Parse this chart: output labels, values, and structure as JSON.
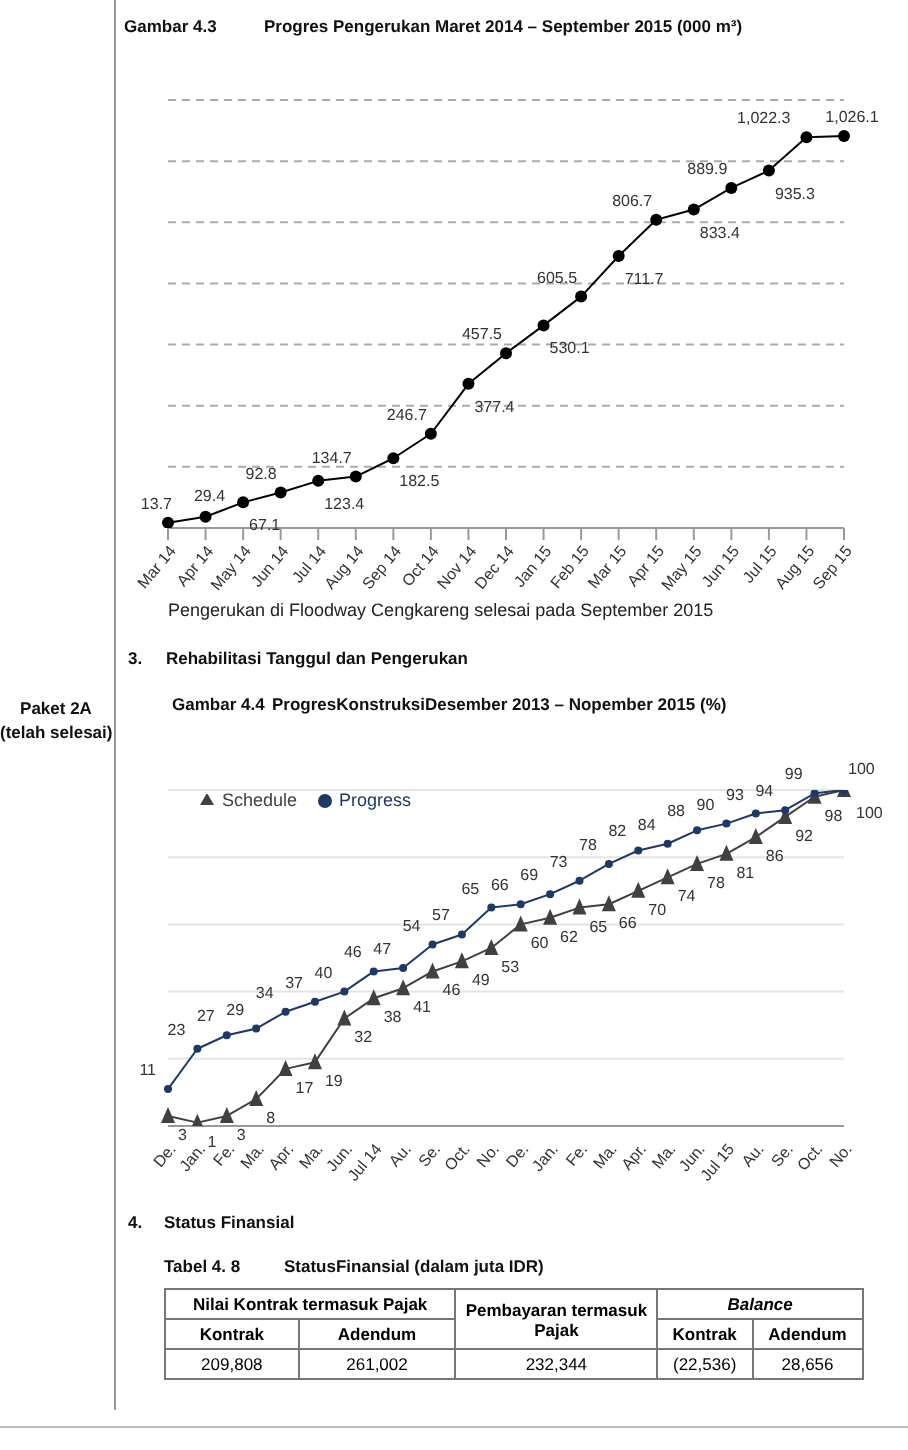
{
  "chart_data": [
    {
      "type": "line",
      "title": "Progres Pengerukan Maret 2014 – September 2015 (000 m³)",
      "annotations": [
        "Gambar 4.3",
        "Pengerukan di Floodway Cengkareng selesai pada September 2015"
      ],
      "categories": [
        "Mar 14",
        "Apr 14",
        "May 14",
        "Jun 14",
        "Jul 14",
        "Aug 14",
        "Sep 14",
        "Oct 14",
        "Nov 14",
        "Dec 14",
        "Jan 15",
        "Feb 15",
        "Mar 15",
        "Apr 15",
        "May 15",
        "Jun 15",
        "Jul 15",
        "Aug 15",
        "Sep 15"
      ],
      "series": [
        {
          "color": "#000000",
          "values": [
            13.7,
            29.4,
            67.1,
            92.8,
            123.4,
            134.7,
            182.5,
            246.7,
            377.4,
            457.5,
            530.1,
            605.5,
            711.7,
            806.7,
            833.4,
            889.9,
            935.3,
            1022.3,
            1026.1
          ],
          "value_labels": [
            "13.7",
            "29.4",
            "67.1",
            "92.8",
            "123.4",
            "134.7",
            "182.5",
            "246.7",
            "377.4",
            "457.5",
            "530.1",
            "605.5",
            "711.7",
            "806.7",
            "833.4",
            "889.9",
            "935.3",
            "1,022.3",
            "1,026.1"
          ]
        }
      ],
      "ylim": [
        0,
        1120
      ],
      "yticks": [
        {
          "value": 0,
          "label": null
        },
        {
          "value": 160,
          "label": null
        },
        {
          "value": 320,
          "label": null
        },
        {
          "value": 480,
          "label": null
        },
        {
          "value": 640,
          "label": null
        },
        {
          "value": 800,
          "label": null
        },
        {
          "value": 960,
          "label": null
        },
        {
          "value": 1120,
          "label": null
        }
      ],
      "tick_labels": "x",
      "grid": "y",
      "marker": "circle"
    },
    {
      "type": "line",
      "title": "ProgresKonstruksiDesember 2013 – Nopember 2015 (%)",
      "annotations": [
        "Gambar 4.4",
        "3.",
        "Rehabilitasi Tanggul dan Pengerukan",
        "Paket 2A",
        "(telah selesai)"
      ],
      "categories": [
        "De.",
        "Jan.",
        "Fe.",
        "Ma.",
        "Apr.",
        "Ma.",
        "Jun.",
        "Jul 14",
        "Au.",
        "Se.",
        "Oct.",
        "No.",
        "De.",
        "Jan.",
        "Fe.",
        "Ma.",
        "Apr.",
        "Ma.",
        "Jun.",
        "Jul 15",
        "Au.",
        "Se.",
        "Oct.",
        "No."
      ],
      "series": [
        {
          "name": "Schedule",
          "color": "#404040",
          "marker": "triangle",
          "values": [
            3,
            1,
            3,
            8,
            17,
            19,
            32,
            38,
            41,
            46,
            49,
            53,
            60,
            62,
            65,
            66,
            70,
            74,
            78,
            81,
            86,
            92,
            98,
            100
          ]
        },
        {
          "name": "Progress",
          "color": "#1f3864",
          "marker": "circle",
          "values": [
            11,
            23,
            27,
            29,
            34,
            37,
            40,
            46,
            47,
            54,
            57,
            65,
            66,
            69,
            73,
            78,
            82,
            84,
            88,
            90,
            93,
            94,
            99,
            100
          ]
        }
      ],
      "ylim": [
        0,
        100
      ],
      "yticks": [
        {
          "value": 0,
          "label": null
        },
        {
          "value": 20,
          "label": null
        },
        {
          "value": 40,
          "label": null
        },
        {
          "value": 60,
          "label": null
        },
        {
          "value": 80,
          "label": null
        },
        {
          "value": 100,
          "label": null
        }
      ],
      "tick_labels": "x",
      "grid": "y",
      "legend": "top left",
      "data_labels": true
    },
    {
      "type": "other",
      "title": "StatusFinansial (dalam juta IDR)",
      "annotations": [
        "4.",
        "Status Finansial",
        "Tabel 4. 8",
        "Nilai Kontrak termasuk Pajak",
        "Pembayaran termasuk Pajak",
        "Balance",
        "Kontrak",
        "Adendum",
        "Kontrak",
        "Adendum",
        "209,808",
        "261,002",
        "232,344",
        "(22,536)",
        "28,656"
      ]
    }
  ]
}
